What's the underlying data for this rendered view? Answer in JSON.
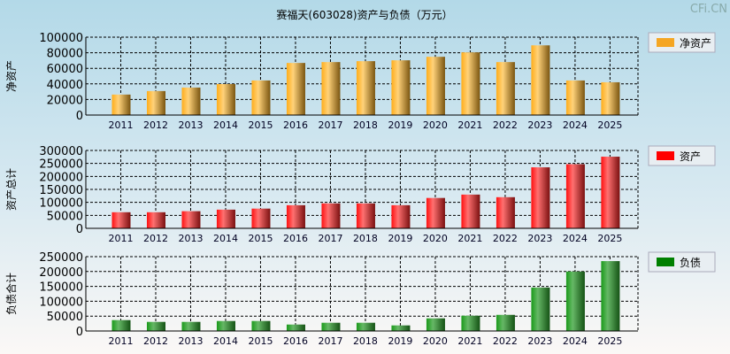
{
  "title": "赛福天(603028)资产与负债（万元）",
  "watermark": "CFi.CN",
  "chart_data": [
    {
      "type": "bar",
      "ylabel": "净资产",
      "legend": "净资产",
      "legend_placement": "right",
      "color": "#f5a623",
      "ylim": [
        0,
        100000
      ],
      "yticks": [
        0,
        20000,
        40000,
        60000,
        80000,
        100000
      ],
      "categories": [
        "2011",
        "2012",
        "2013",
        "2014",
        "2015",
        "2016",
        "2017",
        "2018",
        "2019",
        "2020",
        "2021",
        "2022",
        "2023",
        "2024",
        "2025"
      ],
      "values": [
        26300,
        30800,
        35300,
        39800,
        44400,
        66900,
        68000,
        69200,
        70300,
        74800,
        80500,
        68000,
        89500,
        44400,
        42100
      ]
    },
    {
      "type": "bar",
      "ylabel": "资产总计",
      "legend": "资产",
      "legend_placement": "right",
      "color": "#ff0000",
      "ylim": [
        0,
        300000
      ],
      "yticks": [
        0,
        50000,
        100000,
        150000,
        200000,
        250000,
        300000
      ],
      "categories": [
        "2011",
        "2012",
        "2013",
        "2014",
        "2015",
        "2016",
        "2017",
        "2018",
        "2019",
        "2020",
        "2021",
        "2022",
        "2023",
        "2024",
        "2025"
      ],
      "values": [
        62000,
        62000,
        66000,
        72000,
        76000,
        89000,
        96000,
        96000,
        89000,
        117000,
        130000,
        120000,
        235000,
        247000,
        276000
      ]
    },
    {
      "type": "bar",
      "ylabel": "负债合计",
      "legend": "负债",
      "legend_placement": "right",
      "color": "#008000",
      "ylim": [
        0,
        250000
      ],
      "yticks": [
        0,
        50000,
        100000,
        150000,
        200000,
        250000
      ],
      "categories": [
        "2011",
        "2012",
        "2013",
        "2014",
        "2015",
        "2016",
        "2017",
        "2018",
        "2019",
        "2020",
        "2021",
        "2022",
        "2023",
        "2024",
        "2025"
      ],
      "values": [
        36600,
        30600,
        30600,
        33600,
        33600,
        21700,
        27700,
        27700,
        18800,
        42500,
        51400,
        54300,
        146000,
        200000,
        235000
      ]
    }
  ]
}
